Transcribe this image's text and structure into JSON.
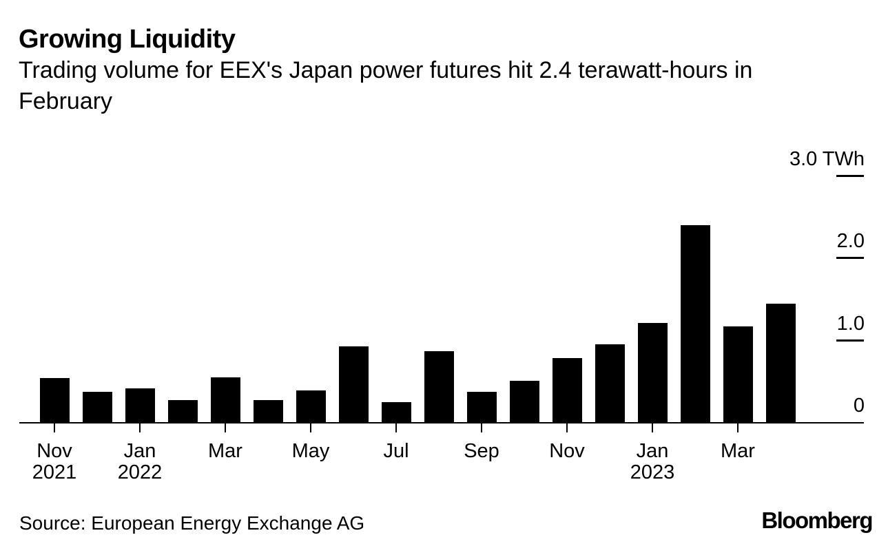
{
  "header": {
    "title": "Growing Liquidity",
    "subtitle": "Trading volume for EEX's Japan power futures hit 2.4 terawatt-hours in February"
  },
  "footer": {
    "source": "Source: European Energy Exchange AG",
    "brand": "Bloomberg"
  },
  "colors": {
    "bar": "#000000",
    "text": "#000000",
    "background": "#ffffff"
  },
  "chart_data": {
    "type": "bar",
    "title": "Growing Liquidity",
    "subtitle": "Trading volume for EEX's Japan power futures hit 2.4 terawatt-hours in February",
    "unit": "TWh",
    "ylabel": "",
    "xlabel": "",
    "ylim": [
      0,
      3.0
    ],
    "grid": false,
    "legend": false,
    "axis_side": "right",
    "bar_color": "#000000",
    "categories": [
      "Nov 2021",
      "Dec 2021",
      "Jan 2022",
      "Feb 2022",
      "Mar 2022",
      "Apr 2022",
      "May 2022",
      "Jun 2022",
      "Jul 2022",
      "Aug 2022",
      "Sep 2022",
      "Oct 2022",
      "Nov 2022",
      "Dec 2022",
      "Jan 2023",
      "Feb 2023",
      "Mar 2023",
      "Apr 2023"
    ],
    "values": [
      0.54,
      0.38,
      0.42,
      0.28,
      0.55,
      0.28,
      0.39,
      0.93,
      0.25,
      0.87,
      0.38,
      0.51,
      0.79,
      0.95,
      1.21,
      2.4,
      1.17,
      1.45
    ],
    "yticks": [
      {
        "value": 3.0,
        "label": "3.0 TWh"
      },
      {
        "value": 2.0,
        "label": "2.0"
      },
      {
        "value": 1.0,
        "label": "1.0"
      },
      {
        "value": 0,
        "label": "0"
      }
    ],
    "xticks": [
      {
        "index": 0,
        "label": "Nov",
        "year": "2021"
      },
      {
        "index": 2,
        "label": "Jan",
        "year": "2022"
      },
      {
        "index": 4,
        "label": "Mar",
        "year": ""
      },
      {
        "index": 6,
        "label": "May",
        "year": ""
      },
      {
        "index": 8,
        "label": "Jul",
        "year": ""
      },
      {
        "index": 10,
        "label": "Sep",
        "year": ""
      },
      {
        "index": 12,
        "label": "Nov",
        "year": ""
      },
      {
        "index": 14,
        "label": "Jan",
        "year": "2023"
      },
      {
        "index": 16,
        "label": "Mar",
        "year": ""
      }
    ]
  }
}
